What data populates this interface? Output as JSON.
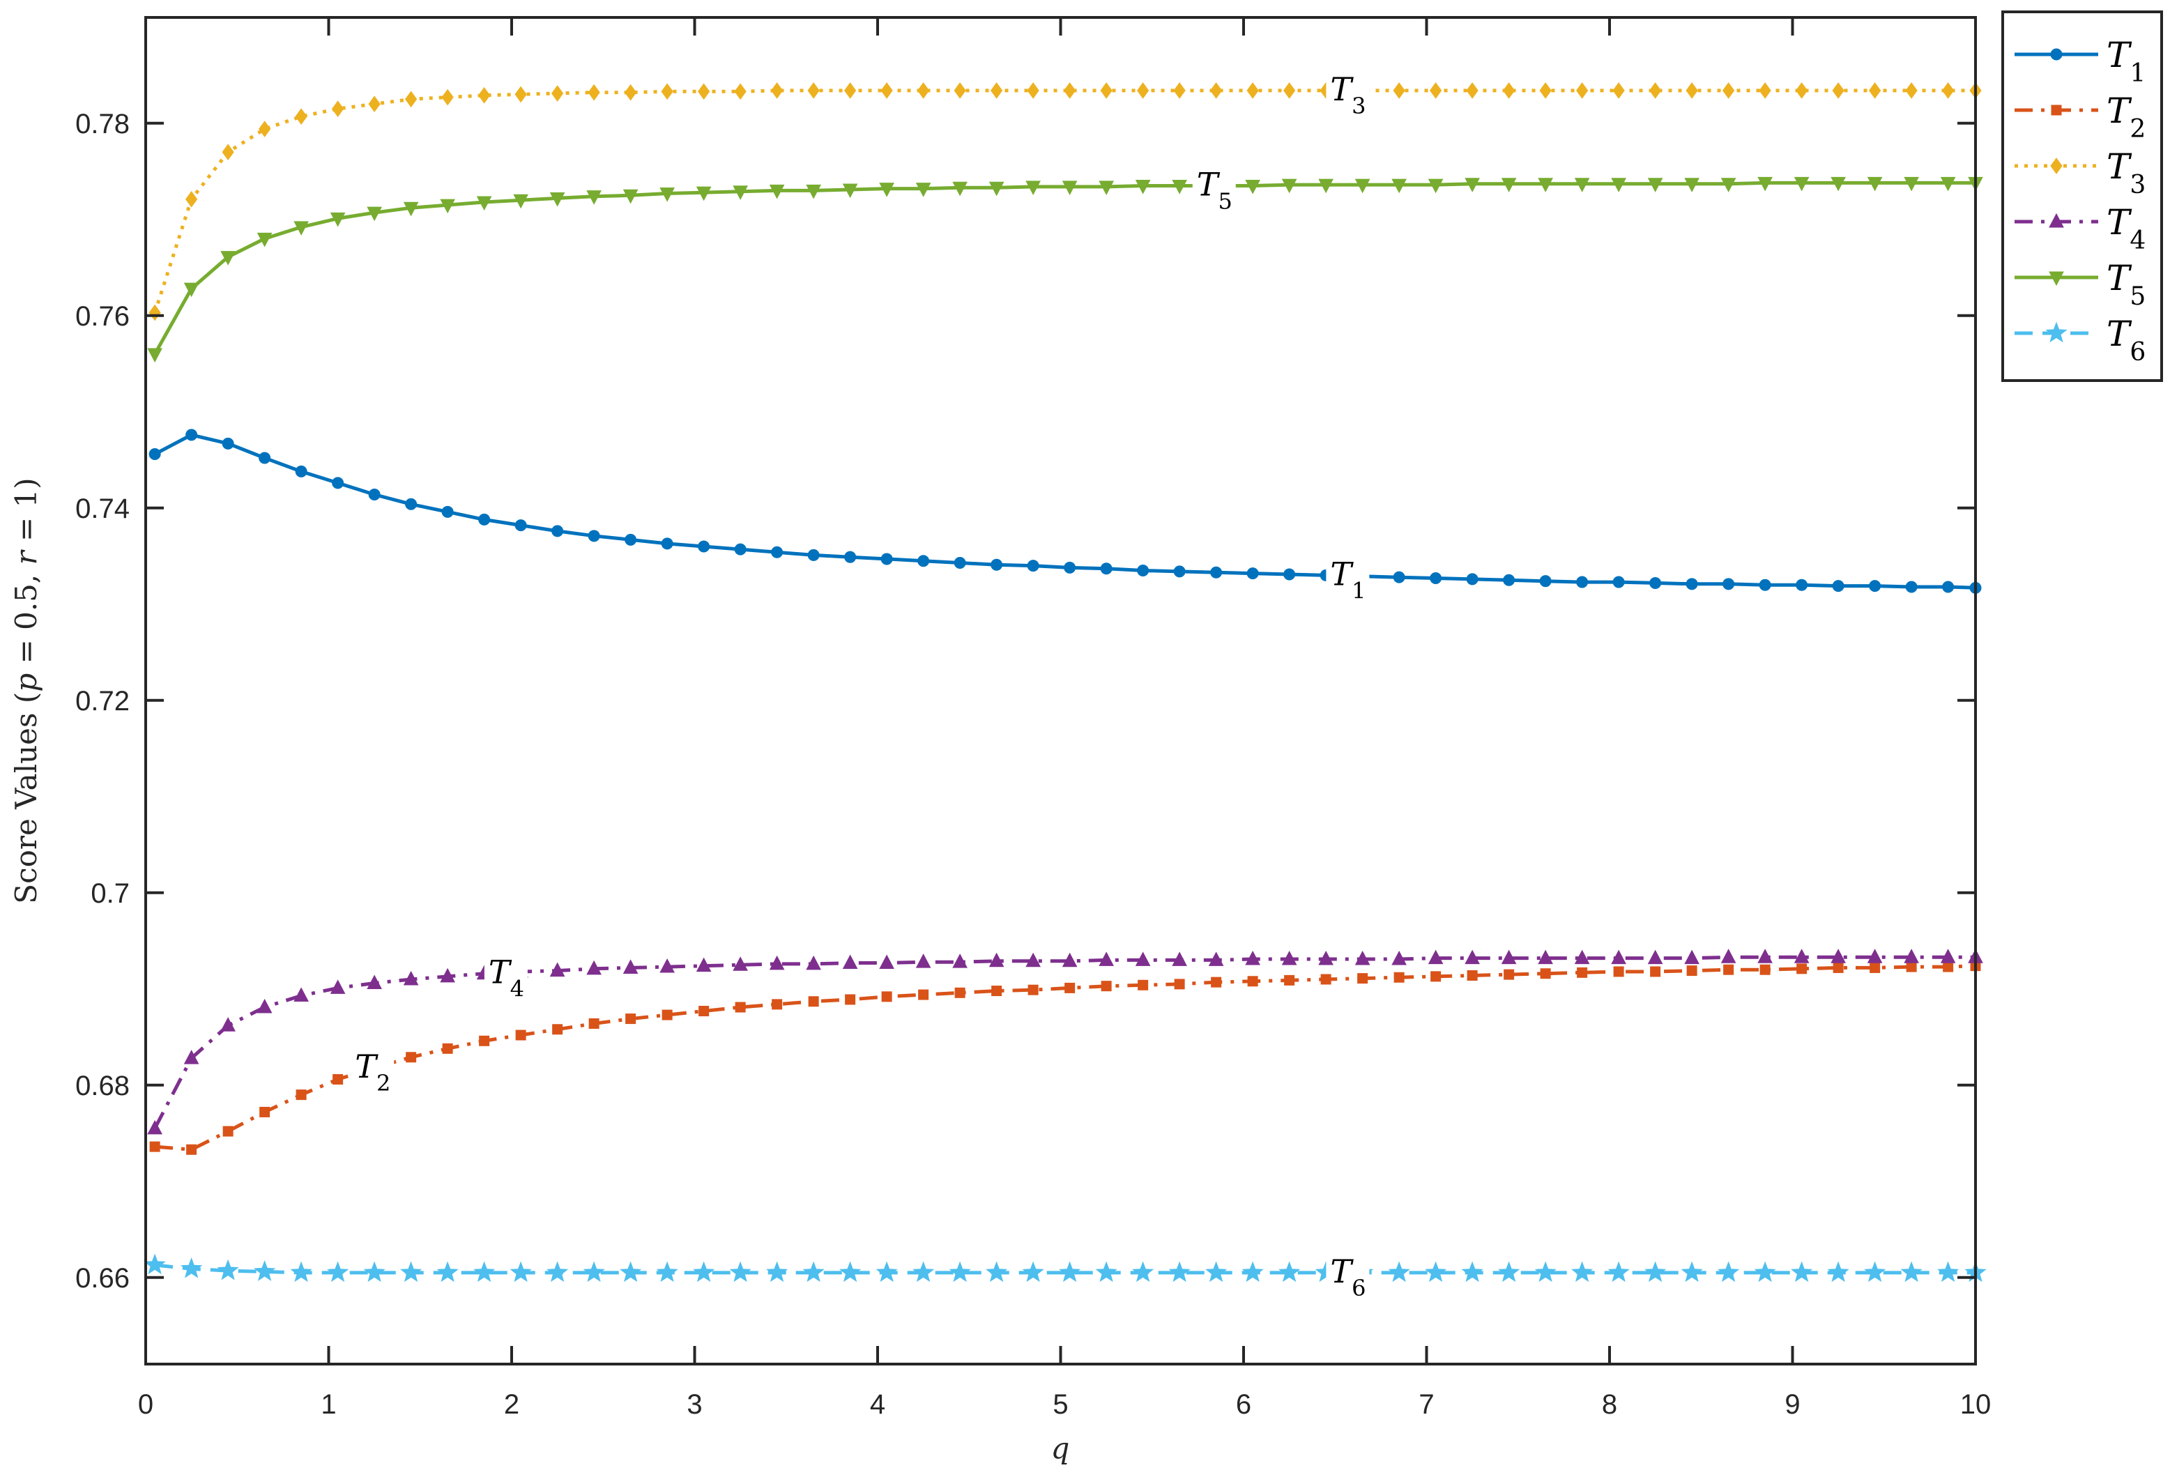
{
  "chart_data": {
    "type": "line",
    "xlabel": "q",
    "ylabel": {
      "prefix": "Score Values (",
      "p_var": "p",
      "p_eq": " = 0.5, ",
      "r_var": "r",
      "r_eq": " = 1)"
    },
    "xlim": [
      0,
      10
    ],
    "ylim": [
      0.651,
      0.791
    ],
    "xticks": [
      0,
      1,
      2,
      3,
      4,
      5,
      6,
      7,
      8,
      9,
      10
    ],
    "xtick_labels": [
      "0",
      "1",
      "2",
      "3",
      "4",
      "5",
      "6",
      "7",
      "8",
      "9",
      "10"
    ],
    "yticks": [
      0.66,
      0.68,
      0.7,
      0.72,
      0.74,
      0.76,
      0.78
    ],
    "ytick_labels": [
      "0.66",
      "0.68",
      "0.7",
      "0.72",
      "0.74",
      "0.76",
      "0.78"
    ],
    "grid": false,
    "legend_position": "outside-top-right",
    "x": [
      0.05,
      0.25,
      0.45,
      0.65,
      0.85,
      1.05,
      1.25,
      1.45,
      1.65,
      1.85,
      2.05,
      2.25,
      2.45,
      2.65,
      2.85,
      3.05,
      3.25,
      3.45,
      3.65,
      3.85,
      4.05,
      4.25,
      4.45,
      4.65,
      4.85,
      5.05,
      5.25,
      5.45,
      5.65,
      5.85,
      6.05,
      6.25,
      6.45,
      6.65,
      6.85,
      7.05,
      7.25,
      7.45,
      7.65,
      7.85,
      8.05,
      8.25,
      8.45,
      8.65,
      8.85,
      9.05,
      9.25,
      9.45,
      9.65,
      9.85,
      10.0
    ],
    "series": [
      {
        "name": "1",
        "color": "#0072BD",
        "marker": "circle",
        "dash": "solid",
        "label": "1",
        "label_x": 6.55,
        "values": [
          0.7456,
          0.7476,
          0.7467,
          0.7452,
          0.7438,
          0.7426,
          0.7414,
          0.7404,
          0.7396,
          0.7388,
          0.7382,
          0.7376,
          0.7371,
          0.7367,
          0.7363,
          0.736,
          0.7357,
          0.7354,
          0.7351,
          0.7349,
          0.7347,
          0.7345,
          0.7343,
          0.7341,
          0.734,
          0.7338,
          0.7337,
          0.7335,
          0.7334,
          0.7333,
          0.7332,
          0.7331,
          0.733,
          0.7329,
          0.7328,
          0.7327,
          0.7326,
          0.7325,
          0.7324,
          0.7323,
          0.7323,
          0.7322,
          0.7321,
          0.7321,
          0.732,
          0.732,
          0.7319,
          0.7319,
          0.7318,
          0.7318,
          0.7317
        ]
      },
      {
        "name": "2",
        "color": "#D95319",
        "marker": "square",
        "dash": "dashdot",
        "label": "2",
        "label_x": 1.22,
        "values": [
          0.6736,
          0.6733,
          0.6752,
          0.6772,
          0.679,
          0.6806,
          0.6818,
          0.6829,
          0.6838,
          0.6846,
          0.6852,
          0.6858,
          0.6864,
          0.6869,
          0.6873,
          0.6877,
          0.6881,
          0.6884,
          0.6887,
          0.6889,
          0.6892,
          0.6894,
          0.6896,
          0.6898,
          0.6899,
          0.6901,
          0.6903,
          0.6904,
          0.6905,
          0.6907,
          0.6908,
          0.6909,
          0.691,
          0.6911,
          0.6912,
          0.6913,
          0.6914,
          0.6915,
          0.6916,
          0.6917,
          0.6918,
          0.6918,
          0.6919,
          0.692,
          0.692,
          0.6921,
          0.6922,
          0.6922,
          0.6923,
          0.6923,
          0.6924
        ]
      },
      {
        "name": "3",
        "color": "#EDB120",
        "marker": "diamond",
        "dash": "dotted",
        "label": "3",
        "label_x": 6.55,
        "values": [
          0.7603,
          0.7721,
          0.777,
          0.7794,
          0.7807,
          0.7815,
          0.782,
          0.7825,
          0.7827,
          0.7829,
          0.783,
          0.7831,
          0.7832,
          0.7832,
          0.7833,
          0.7833,
          0.7833,
          0.7834,
          0.7834,
          0.7834,
          0.7834,
          0.7834,
          0.7834,
          0.7834,
          0.7834,
          0.7834,
          0.7834,
          0.7834,
          0.7834,
          0.7834,
          0.7834,
          0.7834,
          0.7834,
          0.7834,
          0.7834,
          0.7834,
          0.7834,
          0.7834,
          0.7834,
          0.7834,
          0.7834,
          0.7834,
          0.7834,
          0.7834,
          0.7834,
          0.7834,
          0.7834,
          0.7834,
          0.7834,
          0.7834,
          0.7834
        ]
      },
      {
        "name": "4",
        "color": "#7E2F8E",
        "marker": "triangle-up",
        "dash": "dashdot",
        "label": "4",
        "label_x": 1.95,
        "values": [
          0.6755,
          0.6828,
          0.6862,
          0.6881,
          0.6893,
          0.6901,
          0.6906,
          0.691,
          0.6913,
          0.6916,
          0.6918,
          0.6919,
          0.6921,
          0.6922,
          0.6923,
          0.6924,
          0.6925,
          0.6926,
          0.6926,
          0.6927,
          0.6927,
          0.6928,
          0.6928,
          0.6929,
          0.6929,
          0.6929,
          0.693,
          0.693,
          0.693,
          0.693,
          0.6931,
          0.6931,
          0.6931,
          0.6931,
          0.6931,
          0.6932,
          0.6932,
          0.6932,
          0.6932,
          0.6932,
          0.6932,
          0.6932,
          0.6932,
          0.6933,
          0.6933,
          0.6933,
          0.6933,
          0.6933,
          0.6933,
          0.6933,
          0.6933
        ]
      },
      {
        "name": "5",
        "color": "#77AC30",
        "marker": "triangle-down",
        "dash": "solid",
        "label": "5",
        "label_x": 5.82,
        "values": [
          0.756,
          0.7628,
          0.7661,
          0.768,
          0.7692,
          0.7701,
          0.7707,
          0.7712,
          0.7715,
          0.7718,
          0.772,
          0.7722,
          0.7724,
          0.7725,
          0.7727,
          0.7728,
          0.7729,
          0.773,
          0.773,
          0.7731,
          0.7732,
          0.7732,
          0.7733,
          0.7733,
          0.7734,
          0.7734,
          0.7734,
          0.7735,
          0.7735,
          0.7735,
          0.7735,
          0.7736,
          0.7736,
          0.7736,
          0.7736,
          0.7736,
          0.7737,
          0.7737,
          0.7737,
          0.7737,
          0.7737,
          0.7737,
          0.7737,
          0.7737,
          0.7738,
          0.7738,
          0.7738,
          0.7738,
          0.7738,
          0.7738,
          0.7738
        ]
      },
      {
        "name": "6",
        "color": "#4DBEEE",
        "marker": "pentagram",
        "dash": "dashed",
        "label": "6",
        "label_x": 6.55,
        "values": [
          0.6613,
          0.6609,
          0.6607,
          0.6606,
          0.6605,
          0.6605,
          0.6605,
          0.6605,
          0.6605,
          0.6605,
          0.6605,
          0.6605,
          0.6605,
          0.6605,
          0.6605,
          0.6605,
          0.6605,
          0.6605,
          0.6605,
          0.6605,
          0.6605,
          0.6605,
          0.6605,
          0.6605,
          0.6605,
          0.6605,
          0.6605,
          0.6605,
          0.6605,
          0.6605,
          0.6605,
          0.6605,
          0.6605,
          0.6605,
          0.6605,
          0.6605,
          0.6605,
          0.6605,
          0.6605,
          0.6605,
          0.6605,
          0.6605,
          0.6605,
          0.6605,
          0.6605,
          0.6605,
          0.6605,
          0.6605,
          0.6605,
          0.6605,
          0.6605
        ]
      }
    ]
  }
}
